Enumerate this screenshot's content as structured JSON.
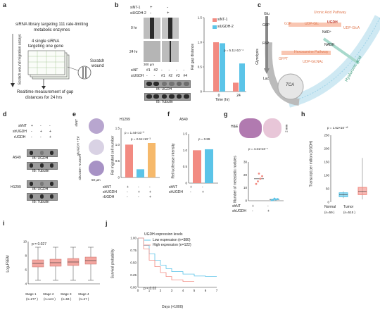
{
  "panels": {
    "a": "a",
    "b": "b",
    "c": "c",
    "d": "d",
    "e": "e",
    "f": "f",
    "g": "g",
    "h": "h",
    "i": "i",
    "j": "j"
  },
  "a": {
    "title_line1": "siRNA library targeting 111 rate-limiting",
    "title_line2": "metabolic enzymes",
    "sub_line1": "4 single siRNA",
    "sub_line2": "targeting one gene",
    "side_label": "Scratch wound migration assays",
    "scratch_label1": "Scratch",
    "scratch_label2": "wound",
    "bottom_line1": "Realtime measurement of gap",
    "bottom_line2": "distances for 24 hrs"
  },
  "b": {
    "siNT": "siNT-1",
    "siUGDH": "siUGDH-2",
    "plus": "+",
    "minus": "-",
    "time0": "0 hr",
    "time24": "24 hr",
    "scale": "300 µm",
    "row_siNT": "siNT",
    "row_siUGDH": "siUGDH",
    "lanes_siNT": [
      "#1",
      "#2",
      "-",
      "-",
      "-",
      "-"
    ],
    "lanes_siUGDH": [
      "-",
      "-",
      "#1",
      "#2",
      "#3",
      "#4"
    ],
    "ib1": "IB: UGDH",
    "ib2": "IB: Tubulin"
  },
  "b_chart": {
    "legend": [
      "siNT-1",
      "siUGDH-2"
    ],
    "ylabel": "Rel gap distance",
    "xlabel": "Time (hr)",
    "pvalue": "p = 5.11×10⁻⁴",
    "colors": {
      "siNT": "#f28b82",
      "siUGDH": "#5bc4e8"
    }
  },
  "c": {
    "glu": "Glu",
    "g6p": "G6P",
    "f6p": "F6P",
    "glycolysis": "Glycolysis",
    "lac": "Lac",
    "tca": "TCA",
    "g1p": "G1P",
    "udp_glc": "UDP-Glc",
    "ugdh": "UGDH",
    "nad": "NAD⁺",
    "nadh": "NADH",
    "uronic": "Uronic Acid Pathway",
    "udp_glca": "UDP-GlcA",
    "gfpt": "GFPT",
    "hexosamine": "Hexosamine Pathway",
    "udp_glcnac": "UDP-GlcNAc",
    "hyaluronic": "Hyaluronic acid"
  },
  "d": {
    "shNT": "shNT",
    "shUGDH": "shUGDH",
    "rUGDH": "rUGDH",
    "row1": [
      "+",
      "-",
      "-"
    ],
    "row2": [
      "-",
      "+",
      "+"
    ],
    "row3": [
      "-",
      "-",
      "+"
    ],
    "cell1": "A549",
    "cell2": "H1299",
    "ib1": "IB: UGDH",
    "ib2": "IB: Tubulin"
  },
  "e": {
    "title": "H1299",
    "img_labels": [
      "shNT",
      "shUGDH +EV",
      "shUGDH +rUGDH"
    ],
    "scale": "50 µm",
    "ylabel": "Rel migrated cell number",
    "p1": "p = 1.44×10⁻³",
    "p2": "p = 2.61×10⁻³",
    "rows": [
      "shNT",
      "shUGDH",
      "rUGDH"
    ],
    "row_vals": [
      [
        "+",
        "-",
        "-"
      ],
      [
        "-",
        "+",
        "+"
      ],
      [
        "-",
        "-",
        "+"
      ]
    ]
  },
  "e_chart": {
    "type": "bar",
    "categories": [
      "shNT",
      "shUGDH",
      "shUGDH+rUGDH"
    ],
    "values": [
      1.0,
      0.25,
      1.05
    ],
    "ylim": [
      0,
      1.5
    ]
  },
  "f": {
    "title": "A549",
    "ylabel": "Rel luciferase intensity",
    "pvalue": "p = 0.89",
    "rows": [
      "shNT",
      "shUGDH"
    ],
    "row_vals": [
      [
        "+",
        "-"
      ],
      [
        "-",
        "+"
      ]
    ]
  },
  "f_chart": {
    "type": "bar",
    "categories": [
      "shNT",
      "shUGDH"
    ],
    "values": [
      1.0,
      1.03
    ],
    "ylim": [
      0,
      1.5
    ]
  },
  "g": {
    "he": "H&E",
    "scale": "2 mm",
    "ylabel": "Number of metastatic nodules",
    "pvalue": "p = 4.21×10⁻⁷",
    "rows": [
      "shNT",
      "shUGDH"
    ],
    "row_vals": [
      [
        "+",
        "-"
      ],
      [
        "-",
        "+"
      ]
    ]
  },
  "h": {
    "ylabel": "Transcript per million (UGDH)",
    "pvalue": "p = 1.62×10⁻¹²",
    "cats": [
      "Normal",
      "Tumor"
    ],
    "ns": [
      "(n=59 )",
      "(n=515 )"
    ]
  },
  "i": {
    "ylabel": "Log₂FSEM",
    "pvalue": "p = 0.027",
    "cats": [
      "Stage 1",
      "Stage 2",
      "Stage 3",
      "Stage 4"
    ],
    "ns": [
      "(n=277 )",
      "(n=124 )",
      "(n=84 )",
      "(n=27 )"
    ]
  },
  "j": {
    "legend_title": "UGDH expression levels",
    "low": "Low expression (n=380)",
    "high": "High expression (n=122)",
    "ylabel": "Survival probability",
    "xlabel": "Days (×1000)",
    "pvalue": "p = 0.02",
    "yticks": [
      "1.00",
      "0.75",
      "0.50",
      "0.25",
      "0.00"
    ],
    "xticks": [
      "0",
      "1",
      "2",
      "3",
      "4",
      "5",
      "6",
      "7"
    ],
    "colors": {
      "low": "#5bc4e8",
      "high": "#f28b82"
    }
  },
  "chart_data": [
    {
      "type": "bar",
      "title": "",
      "xlabel": "Time (hr)",
      "ylabel": "Rel gap distance",
      "categories": [
        "0",
        "24"
      ],
      "series": [
        {
          "name": "siNT-1",
          "values": [
            1.0,
            0.18
          ]
        },
        {
          "name": "siUGDH-2",
          "values": [
            0.98,
            0.57
          ]
        }
      ],
      "yticks": [
        "0",
        "0.5",
        "1.0",
        "1.5"
      ],
      "ylim": [
        0,
        1.5
      ]
    },
    {
      "type": "bar",
      "title": "H1299",
      "ylabel": "Rel migrated cell number",
      "categories": [
        "shNT",
        "shUGDH",
        "shUGDH+rUGDH"
      ],
      "values": [
        1.0,
        0.25,
        1.05
      ],
      "yticks": [
        "0",
        "0.5",
        "1.0",
        "1.5"
      ],
      "ylim": [
        0,
        1.5
      ]
    },
    {
      "type": "bar",
      "title": "A549",
      "ylabel": "Rel luciferase intensity",
      "categories": [
        "shNT",
        "shUGDH"
      ],
      "values": [
        1.0,
        1.03
      ],
      "yticks": [
        "0",
        "0.5",
        "1.0",
        "1.5"
      ],
      "ylim": [
        0,
        1.5
      ]
    },
    {
      "type": "scatter",
      "ylabel": "Number of metastatic nodules",
      "categories": [
        "shNT",
        "shUGDH"
      ],
      "means": [
        17,
        1
      ],
      "yticks": [
        "0",
        "10",
        "20",
        "30"
      ],
      "ylim": [
        0,
        30
      ]
    },
    {
      "type": "box",
      "ylabel": "Transcript per million (UGDH)",
      "categories": [
        "Normal",
        "Tumor"
      ],
      "median": [
        28,
        40
      ],
      "yticks": [
        "0",
        "50",
        "100",
        "150",
        "200",
        "250"
      ],
      "ylim": [
        0,
        250
      ]
    },
    {
      "type": "box",
      "ylabel": "Log₂FSEM",
      "categories": [
        "Stage 1",
        "Stage 2",
        "Stage 3",
        "Stage 4"
      ],
      "median": [
        6.9,
        7.0,
        7.1,
        7.3
      ],
      "yticks": [
        "4",
        "6",
        "8",
        "10"
      ],
      "ylim": [
        4,
        10
      ]
    },
    {
      "type": "line",
      "ylabel": "Survival probability",
      "xlabel": "Days (×1000)",
      "series": [
        {
          "name": "Low expression (n=380)",
          "x": [
            0,
            0.5,
            1,
            1.5,
            2,
            2.5,
            3,
            4,
            5,
            6,
            7
          ],
          "y": [
            1,
            0.85,
            0.68,
            0.55,
            0.45,
            0.38,
            0.32,
            0.27,
            0.23,
            0.22,
            0.22
          ]
        },
        {
          "name": "High expression (n=122)",
          "x": [
            0,
            0.5,
            1,
            1.5,
            2,
            2.5,
            3,
            4,
            5
          ],
          "y": [
            1,
            0.78,
            0.55,
            0.42,
            0.3,
            0.22,
            0.15,
            0.12,
            0.12
          ]
        }
      ],
      "xlim": [
        0,
        7
      ],
      "ylim": [
        0,
        1
      ]
    }
  ]
}
